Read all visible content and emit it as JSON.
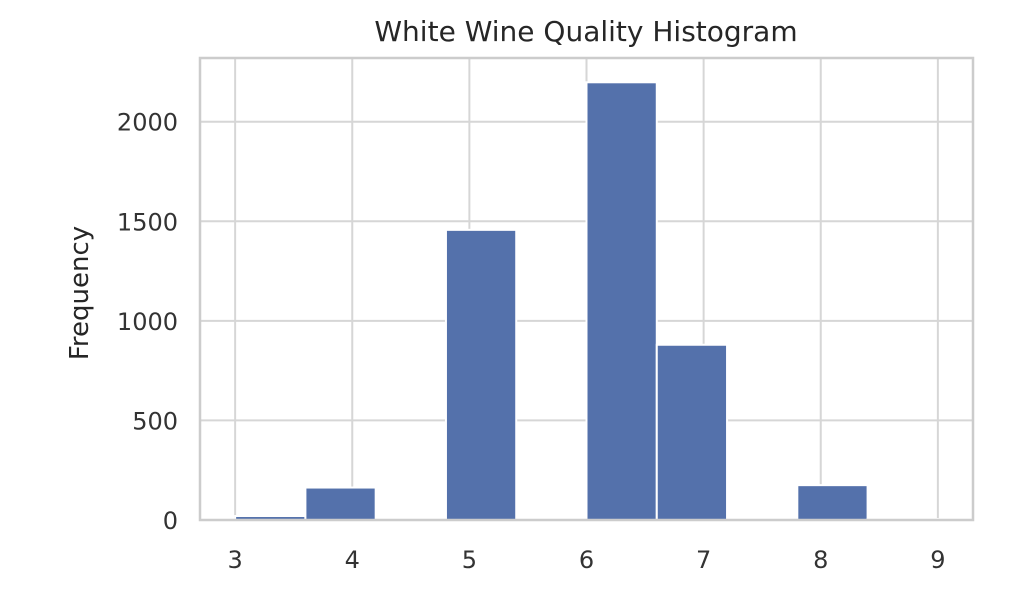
{
  "chart_data": {
    "type": "bar",
    "title": "White Wine Quality Histogram",
    "xlabel": "",
    "ylabel": "Frequency",
    "xlim": [
      2.7,
      9.3
    ],
    "ylim": [
      0,
      2320
    ],
    "x_ticks": [
      3,
      4,
      5,
      6,
      7,
      8,
      9
    ],
    "y_ticks": [
      0,
      500,
      1000,
      1500,
      2000
    ],
    "grid": true,
    "bar_color": "#5471ab",
    "bins": [
      {
        "x0": 3.0,
        "x1": 3.6,
        "value": 20
      },
      {
        "x0": 3.6,
        "x1": 4.2,
        "value": 163
      },
      {
        "x0": 4.2,
        "x1": 4.8,
        "value": 0
      },
      {
        "x0": 4.8,
        "x1": 5.4,
        "value": 1457
      },
      {
        "x0": 5.4,
        "x1": 6.0,
        "value": 0
      },
      {
        "x0": 6.0,
        "x1": 6.6,
        "value": 2198
      },
      {
        "x0": 6.6,
        "x1": 7.2,
        "value": 880
      },
      {
        "x0": 7.2,
        "x1": 7.8,
        "value": 0
      },
      {
        "x0": 7.8,
        "x1": 8.4,
        "value": 175
      },
      {
        "x0": 8.4,
        "x1": 9.0,
        "value": 5
      }
    ]
  }
}
